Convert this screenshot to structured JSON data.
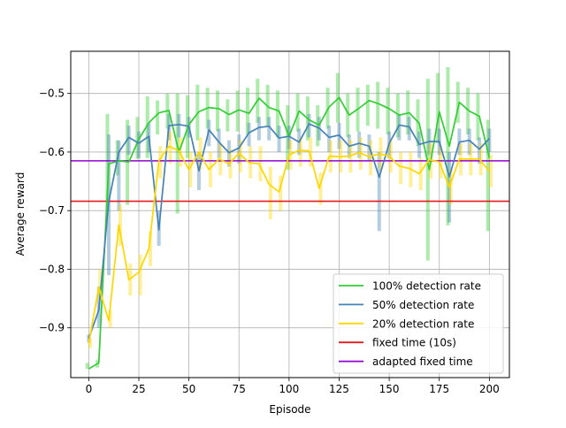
{
  "chart_data": {
    "type": "line",
    "xlabel": "Episode",
    "ylabel": "Average reward",
    "xlim": [
      -9,
      210
    ],
    "ylim": [
      -0.985,
      -0.428
    ],
    "xticks": [
      0,
      25,
      50,
      75,
      100,
      125,
      150,
      175,
      200
    ],
    "yticks": [
      -0.9,
      -0.8,
      -0.7,
      -0.6,
      -0.5
    ],
    "xtick_labels": [
      "0",
      "25",
      "50",
      "75",
      "100",
      "125",
      "150",
      "175",
      "200"
    ],
    "ytick_labels": [
      "−0.9",
      "−0.8",
      "−0.7",
      "−0.6",
      "−0.5"
    ],
    "grid": true,
    "legend_position": "lower right",
    "x": [
      0,
      5,
      10,
      15,
      20,
      25,
      30,
      35,
      40,
      45,
      50,
      55,
      60,
      65,
      70,
      75,
      80,
      85,
      90,
      95,
      100,
      105,
      110,
      115,
      120,
      125,
      130,
      135,
      140,
      145,
      150,
      155,
      160,
      165,
      170,
      175,
      180,
      185,
      190,
      195,
      200
    ],
    "series": [
      {
        "name": "100% detection rate",
        "color": "#32cd32",
        "values": [
          -0.97,
          -0.96,
          -0.62,
          -0.615,
          -0.617,
          -0.578,
          -0.55,
          -0.533,
          -0.529,
          -0.6,
          -0.553,
          -0.531,
          -0.524,
          -0.526,
          -0.536,
          -0.528,
          -0.534,
          -0.508,
          -0.524,
          -0.53,
          -0.573,
          -0.53,
          -0.545,
          -0.554,
          -0.523,
          -0.507,
          -0.537,
          -0.525,
          -0.512,
          -0.518,
          -0.526,
          -0.537,
          -0.533,
          -0.551,
          -0.63,
          -0.531,
          -0.59,
          -0.515,
          -0.53,
          -0.539,
          -0.61
        ],
        "err_low": [
          -0.97,
          -0.968,
          -0.7,
          -0.64,
          -0.69,
          -0.612,
          -0.61,
          -0.57,
          -0.56,
          -0.705,
          -0.61,
          -0.58,
          -0.56,
          -0.565,
          -0.565,
          -0.565,
          -0.57,
          -0.55,
          -0.555,
          -0.575,
          -0.63,
          -0.565,
          -0.58,
          -0.59,
          -0.56,
          -0.55,
          -0.575,
          -0.565,
          -0.555,
          -0.56,
          -0.57,
          -0.575,
          -0.57,
          -0.59,
          -0.785,
          -0.585,
          -0.725,
          -0.55,
          -0.57,
          -0.58,
          -0.735
        ],
        "err_high": [
          -0.96,
          -0.955,
          -0.535,
          -0.58,
          -0.545,
          -0.54,
          -0.505,
          -0.512,
          -0.5,
          -0.5,
          -0.503,
          -0.485,
          -0.49,
          -0.495,
          -0.51,
          -0.495,
          -0.49,
          -0.475,
          -0.485,
          -0.495,
          -0.52,
          -0.5,
          -0.505,
          -0.52,
          -0.49,
          -0.465,
          -0.5,
          -0.49,
          -0.485,
          -0.48,
          -0.49,
          -0.5,
          -0.495,
          -0.51,
          -0.475,
          -0.465,
          -0.455,
          -0.48,
          -0.49,
          -0.5,
          -0.545
        ]
      },
      {
        "name": "50% detection rate",
        "color": "#4682b4",
        "values": [
          -0.918,
          -0.87,
          -0.684,
          -0.6,
          -0.575,
          -0.585,
          -0.573,
          -0.733,
          -0.555,
          -0.553,
          -0.556,
          -0.632,
          -0.562,
          -0.583,
          -0.601,
          -0.593,
          -0.567,
          -0.558,
          -0.556,
          -0.576,
          -0.573,
          -0.583,
          -0.552,
          -0.559,
          -0.575,
          -0.571,
          -0.59,
          -0.585,
          -0.59,
          -0.643,
          -0.585,
          -0.554,
          -0.557,
          -0.587,
          -0.582,
          -0.582,
          -0.642,
          -0.583,
          -0.58,
          -0.595,
          -0.577
        ],
        "err_low": [
          -0.925,
          -0.9,
          -0.81,
          -0.7,
          -0.605,
          -0.61,
          -0.6,
          -0.76,
          -0.58,
          -0.575,
          -0.575,
          -0.665,
          -0.59,
          -0.61,
          -0.625,
          -0.62,
          -0.59,
          -0.58,
          -0.58,
          -0.6,
          -0.595,
          -0.605,
          -0.575,
          -0.58,
          -0.6,
          -0.595,
          -0.61,
          -0.61,
          -0.615,
          -0.735,
          -0.61,
          -0.58,
          -0.58,
          -0.61,
          -0.605,
          -0.605,
          -0.72,
          -0.605,
          -0.605,
          -0.62,
          -0.6
        ],
        "err_high": [
          -0.912,
          -0.83,
          -0.57,
          -0.58,
          -0.555,
          -0.565,
          -0.55,
          -0.7,
          -0.535,
          -0.535,
          -0.54,
          -0.6,
          -0.545,
          -0.56,
          -0.58,
          -0.57,
          -0.55,
          -0.54,
          -0.54,
          -0.555,
          -0.555,
          -0.56,
          -0.535,
          -0.54,
          -0.555,
          -0.55,
          -0.57,
          -0.565,
          -0.57,
          -0.6,
          -0.565,
          -0.535,
          -0.54,
          -0.565,
          -0.56,
          -0.56,
          -0.6,
          -0.56,
          -0.56,
          -0.575,
          -0.56
        ]
      },
      {
        "name": "20% detection rate",
        "color": "#ffd700",
        "values": [
          -0.927,
          -0.83,
          -0.888,
          -0.724,
          -0.818,
          -0.805,
          -0.765,
          -0.615,
          -0.59,
          -0.598,
          -0.63,
          -0.6,
          -0.63,
          -0.612,
          -0.62,
          -0.602,
          -0.618,
          -0.62,
          -0.655,
          -0.668,
          -0.605,
          -0.597,
          -0.598,
          -0.662,
          -0.607,
          -0.608,
          -0.607,
          -0.601,
          -0.608,
          -0.603,
          -0.607,
          -0.624,
          -0.628,
          -0.637,
          -0.613,
          -0.617,
          -0.66,
          -0.612,
          -0.612,
          -0.612,
          -0.633
        ],
        "err_low": [
          -0.935,
          -0.855,
          -0.9,
          -0.76,
          -0.845,
          -0.845,
          -0.795,
          -0.645,
          -0.62,
          -0.625,
          -0.66,
          -0.63,
          -0.66,
          -0.64,
          -0.645,
          -0.635,
          -0.645,
          -0.65,
          -0.715,
          -0.7,
          -0.63,
          -0.625,
          -0.625,
          -0.69,
          -0.635,
          -0.635,
          -0.635,
          -0.63,
          -0.64,
          -0.63,
          -0.635,
          -0.655,
          -0.66,
          -0.665,
          -0.645,
          -0.645,
          -0.69,
          -0.64,
          -0.64,
          -0.64,
          -0.66
        ],
        "err_high": [
          -0.918,
          -0.8,
          -0.87,
          -0.69,
          -0.79,
          -0.775,
          -0.735,
          -0.59,
          -0.565,
          -0.575,
          -0.6,
          -0.575,
          -0.6,
          -0.585,
          -0.595,
          -0.58,
          -0.59,
          -0.59,
          -0.625,
          -0.64,
          -0.58,
          -0.575,
          -0.575,
          -0.635,
          -0.58,
          -0.58,
          -0.58,
          -0.575,
          -0.58,
          -0.575,
          -0.58,
          -0.6,
          -0.6,
          -0.61,
          -0.585,
          -0.59,
          -0.63,
          -0.585,
          -0.585,
          -0.585,
          -0.605
        ]
      }
    ],
    "hlines": [
      {
        "name": "fixed time (10s)",
        "color": "#e41a1c",
        "y": -0.684
      },
      {
        "name": "adapted fixed time",
        "color": "#9400d3",
        "y": -0.615
      }
    ]
  }
}
